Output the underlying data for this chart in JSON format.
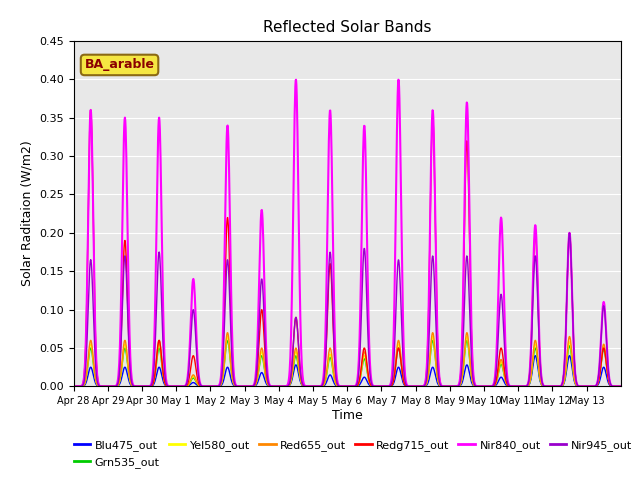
{
  "title": "Reflected Solar Bands",
  "xlabel": "Time",
  "ylabel": "Solar Raditaion (W/m2)",
  "ylim": [
    0,
    0.45
  ],
  "background_color": "#e8e8e8",
  "annotation_text": "BA_arable",
  "annotation_color": "#8B0000",
  "annotation_bg": "#f5e642",
  "series_order": [
    "Blu475_out",
    "Grn535_out",
    "Yel580_out",
    "Red655_out",
    "Redg715_out",
    "Nir840_out",
    "Nir945_out"
  ],
  "series": {
    "Blu475_out": {
      "color": "#0000ff",
      "lw": 1.0
    },
    "Grn535_out": {
      "color": "#00cc00",
      "lw": 1.0
    },
    "Yel580_out": {
      "color": "#ffff00",
      "lw": 1.0
    },
    "Red655_out": {
      "color": "#ff8800",
      "lw": 1.0
    },
    "Redg715_out": {
      "color": "#ff0000",
      "lw": 1.0
    },
    "Nir840_out": {
      "color": "#ff00ff",
      "lw": 1.5
    },
    "Nir945_out": {
      "color": "#9900cc",
      "lw": 1.0
    }
  },
  "x_tick_labels": [
    "Apr 28",
    "Apr 29",
    "Apr 30",
    "May 1",
    "May 2",
    "May 3",
    "May 4",
    "May 5",
    "May 6",
    "May 7",
    "May 8",
    "May 9",
    "May 10",
    "May 11",
    "May 12",
    "May 13"
  ],
  "n_days": 16,
  "n_points_per_day": 96,
  "peaks": {
    "Nir840_out": [
      0.36,
      0.35,
      0.35,
      0.14,
      0.34,
      0.23,
      0.4,
      0.36,
      0.34,
      0.4,
      0.36,
      0.37,
      0.22,
      0.21,
      0.2,
      0.11
    ],
    "Nir945_out": [
      0.165,
      0.17,
      0.175,
      0.1,
      0.165,
      0.14,
      0.09,
      0.175,
      0.18,
      0.165,
      0.17,
      0.17,
      0.12,
      0.17,
      0.2,
      0.105
    ],
    "Redg715_out": [
      0.36,
      0.19,
      0.06,
      0.04,
      0.22,
      0.1,
      0.09,
      0.16,
      0.05,
      0.05,
      0.35,
      0.32,
      0.05,
      0.2,
      0.2,
      0.05
    ],
    "Red655_out": [
      0.06,
      0.06,
      0.06,
      0.015,
      0.07,
      0.05,
      0.05,
      0.05,
      0.045,
      0.06,
      0.07,
      0.07,
      0.035,
      0.06,
      0.065,
      0.055
    ],
    "Yel580_out": [
      0.055,
      0.055,
      0.055,
      0.013,
      0.065,
      0.045,
      0.045,
      0.042,
      0.04,
      0.055,
      0.065,
      0.065,
      0.032,
      0.055,
      0.058,
      0.052
    ],
    "Grn535_out": [
      0.05,
      0.05,
      0.05,
      0.011,
      0.06,
      0.04,
      0.04,
      0.038,
      0.036,
      0.05,
      0.06,
      0.06,
      0.029,
      0.05,
      0.053,
      0.048
    ],
    "Blu475_out": [
      0.025,
      0.025,
      0.025,
      0.005,
      0.025,
      0.018,
      0.028,
      0.015,
      0.012,
      0.025,
      0.025,
      0.028,
      0.012,
      0.04,
      0.04,
      0.025
    ]
  },
  "sigma": 0.075
}
